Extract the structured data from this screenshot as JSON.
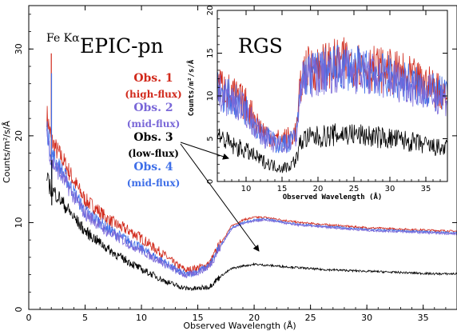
{
  "chart_data": [
    {
      "type": "line",
      "panel": "EPIC-pn",
      "xlabel": "Observed Wavelength (Å)",
      "ylabel": "Counts/m²/s/Å",
      "xlim": [
        0,
        38
      ],
      "ylim": [
        0,
        35
      ],
      "xticks": [
        "0",
        "5",
        "10",
        "15",
        "20",
        "25",
        "30",
        "35"
      ],
      "yticks": [
        "0",
        "10",
        "20",
        "30"
      ],
      "grid": false,
      "annotations": {
        "panel_label": "EPIC-pn",
        "line_label": "Fe Kα",
        "line_label_x": 2.0
      },
      "x": [
        1.6,
        2.0,
        2.5,
        3,
        4,
        5,
        6,
        7,
        8,
        9,
        10,
        11,
        12,
        13,
        14,
        15,
        16,
        17,
        18,
        19,
        20,
        21,
        22,
        23,
        24,
        25,
        26,
        28,
        30,
        32,
        34,
        36,
        38
      ],
      "series": [
        {
          "name": "Obs. 1",
          "sublabel": "(high-flux)",
          "color": "#d12a1c",
          "values": [
            22.5,
            19.5,
            18.3,
            17.3,
            14.8,
            12.6,
            11.6,
            10.4,
            9.6,
            9.0,
            8.2,
            7.2,
            6.3,
            5.2,
            4.5,
            4.8,
            5.2,
            7.6,
            9.6,
            10.3,
            10.6,
            10.6,
            10.4,
            10.2,
            10.0,
            9.9,
            9.8,
            9.6,
            9.4,
            9.3,
            9.2,
            9.1,
            9.0
          ]
        },
        {
          "name": "Obs. 2",
          "sublabel": "(mid-flux)",
          "color": "#7a68d8",
          "values": [
            20.5,
            17.0,
            16.2,
            15.2,
            13.0,
            11.0,
            10.0,
            8.9,
            8.2,
            7.5,
            6.8,
            6.0,
            5.3,
            4.5,
            3.9,
            4.3,
            4.9,
            7.2,
            9.3,
            9.9,
            10.2,
            10.3,
            10.1,
            9.9,
            9.7,
            9.6,
            9.5,
            9.3,
            9.1,
            9.0,
            8.9,
            8.8,
            8.7
          ]
        },
        {
          "name": "Obs. 3",
          "sublabel": "(low-flux)",
          "color": "#000000",
          "values": [
            15.0,
            13.8,
            13.2,
            12.3,
            10.6,
            9.0,
            8.0,
            7.0,
            6.1,
            5.4,
            4.6,
            4.0,
            3.3,
            2.8,
            2.4,
            2.4,
            2.6,
            3.8,
            4.7,
            5.0,
            5.2,
            5.1,
            5.0,
            4.9,
            4.8,
            4.7,
            4.6,
            4.5,
            4.4,
            4.3,
            4.2,
            4.1,
            4.1
          ]
        },
        {
          "name": "Obs. 4",
          "sublabel": "(mid-flux)",
          "color": "#3f6fe8",
          "values": [
            21.0,
            18.0,
            16.8,
            15.8,
            13.5,
            11.3,
            10.4,
            9.3,
            8.5,
            7.8,
            7.0,
            6.2,
            5.5,
            4.6,
            4.0,
            4.4,
            5.0,
            7.3,
            9.4,
            10.0,
            10.3,
            10.4,
            10.2,
            10.0,
            9.8,
            9.7,
            9.6,
            9.4,
            9.2,
            9.1,
            9.0,
            8.9,
            8.8
          ]
        }
      ]
    },
    {
      "type": "line",
      "panel": "RGS",
      "xlabel": "Observed Wavelength (Å)",
      "ylabel": "Counts/m²/s/Å",
      "xlim": [
        6,
        38
      ],
      "ylim": [
        0,
        20
      ],
      "xticks": [
        "10",
        "15",
        "20",
        "25",
        "30",
        "35"
      ],
      "yticks": [
        "0",
        "5",
        "10",
        "15",
        "20"
      ],
      "grid": false,
      "annotations": {
        "panel_label": "RGS"
      },
      "x": [
        6,
        8,
        10,
        12,
        14,
        15,
        16,
        17,
        17.5,
        18,
        20,
        22,
        24,
        26,
        28,
        30,
        32,
        34,
        36,
        38
      ],
      "series": [
        {
          "name": "Obs. 1",
          "color": "#d12a1c",
          "values": [
            11.5,
            10.2,
            9.0,
            6.2,
            5.0,
            4.8,
            5.2,
            5.8,
            10.5,
            13.0,
            13.4,
            13.8,
            14.0,
            13.6,
            13.2,
            12.8,
            12.4,
            11.6,
            11.0,
            10.5
          ]
        },
        {
          "name": "Obs. 2",
          "color": "#7a68d8",
          "values": [
            10.5,
            9.4,
            8.2,
            5.6,
            4.4,
            4.2,
            4.6,
            5.2,
            9.8,
            12.2,
            12.6,
            13.0,
            13.2,
            12.8,
            12.4,
            12.0,
            11.6,
            10.8,
            10.2,
            9.7
          ]
        },
        {
          "name": "Obs. 3",
          "color": "#000000",
          "values": [
            5.5,
            4.2,
            3.6,
            2.5,
            1.8,
            1.6,
            1.8,
            2.6,
            4.4,
            5.0,
            5.2,
            5.4,
            5.6,
            5.4,
            5.2,
            5.0,
            4.8,
            4.4,
            4.0,
            3.8
          ]
        },
        {
          "name": "Obs. 4",
          "color": "#3f6fe8",
          "values": [
            10.8,
            9.6,
            8.4,
            5.8,
            4.5,
            4.3,
            4.7,
            5.3,
            10.0,
            12.4,
            12.8,
            13.2,
            13.4,
            13.0,
            12.6,
            12.2,
            11.8,
            11.0,
            10.4,
            9.9
          ]
        }
      ]
    }
  ]
}
